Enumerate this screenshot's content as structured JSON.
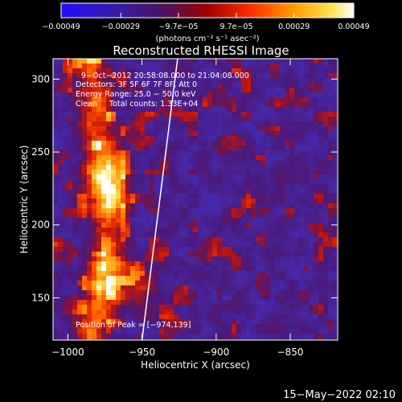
{
  "chart_data": {
    "type": "heatmap",
    "title": "Reconstructed RHESSI Image",
    "xlabel": "Heliocentric X (arcsec)",
    "ylabel": "Heliocentric Y (arcsec)",
    "xlim": [
      -1010,
      -818
    ],
    "ylim": [
      121,
      314
    ],
    "x_ticks": [
      -1000,
      -950,
      -900,
      -850
    ],
    "x_tick_labels": [
      "−1000",
      "−950",
      "−900",
      "−850"
    ],
    "y_ticks": [
      150,
      200,
      250,
      300
    ],
    "y_tick_labels": [
      "150",
      "200",
      "250",
      "300"
    ],
    "grid": false,
    "colorbar": {
      "colormap": "hot-on-dark-blue (blue → purple → red → orange → yellow → white)",
      "range": [
        -0.00049,
        0.00049
      ],
      "ticks": [
        -0.00049,
        -0.00029,
        -9.7e-05,
        9.7e-05,
        0.00029,
        0.00049
      ],
      "tick_labels": [
        "−0.00049",
        "−0.00029",
        "−9.7e−05",
        "9.7e−05",
        "0.00029",
        "0.00049"
      ],
      "unit_label": "(photons cm⁻² s⁻¹ asec⁻²)"
    },
    "annotations": {
      "time": "9−Oct−2012 20:58:08.000 to 21:04:08.000",
      "detectors": "Detectors: 3F 5F 6F 7F 8F, Att 0",
      "energy": "Energy Range: 25.0 − 50.0 keV",
      "clean": "Clean     Total counts: 1.33E+04",
      "peak": "Position of Peak = [−974,139]"
    },
    "limb_line": [
      [
        -950,
        121
      ],
      [
        -926,
        314
      ]
    ],
    "emission_regions": [
      {
        "x": -975,
        "y": 230,
        "level": 0.7
      },
      {
        "x": -960,
        "y": 160,
        "level": 0.75
      }
    ]
  },
  "footer": {
    "timestamp": "15−May−2022 02:10"
  },
  "colors": {
    "background": "#000000",
    "text": "#ffffff",
    "limb": "#ffffff"
  }
}
